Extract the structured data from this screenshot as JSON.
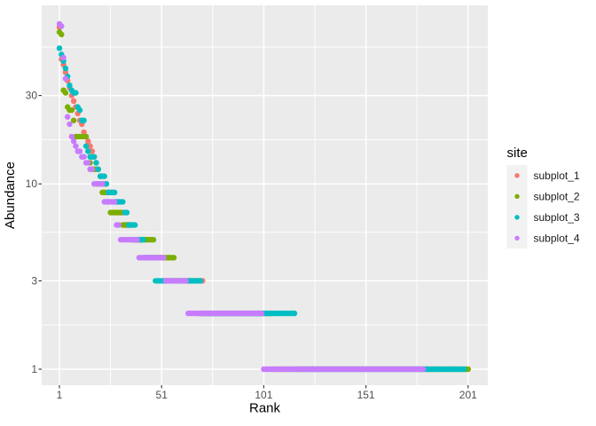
{
  "colors": {
    "figure_background": "#FFFFFF",
    "panel_background": "#EBEBEB",
    "grid": "#FFFFFF",
    "legend_key_background": "#F2F2F2",
    "axis_tick_text": "#4D4D4D",
    "axis_title_text": "#000000",
    "tick_marks": "#333333"
  },
  "chart_data": {
    "type": "scatter",
    "title": "",
    "xlabel": "Rank",
    "ylabel": "Abundance",
    "x_scale": "linear",
    "y_scale": "log10",
    "x_ticks": [
      1,
      51,
      101,
      151,
      201
    ],
    "x_minor_ticks": [
      26,
      76,
      126,
      176
    ],
    "y_ticks": [
      1,
      3,
      10,
      30
    ],
    "y_minor_ticks": [
      1.7321,
      5.4772,
      17.3205,
      54.7723
    ],
    "xlim": [
      -9,
      211
    ],
    "ylim": [
      0.81,
      92
    ],
    "grid": "on",
    "legend_title": "site",
    "legend_position": "right",
    "point_run_format": "[abundance, rank_from, rank_to]",
    "series": [
      {
        "name": "subplot_1",
        "color": "#F8766D",
        "runs": [
          [
            70,
            1,
            1
          ],
          [
            47,
            2,
            2
          ],
          [
            44,
            3,
            3
          ],
          [
            40,
            4,
            4
          ],
          [
            36,
            5,
            5
          ],
          [
            33,
            6,
            6
          ],
          [
            30,
            7,
            7
          ],
          [
            28,
            8,
            8
          ],
          [
            26,
            9,
            9
          ],
          [
            24,
            10,
            10
          ],
          [
            22,
            11,
            11
          ],
          [
            21,
            12,
            12
          ],
          [
            19,
            13,
            13
          ],
          [
            18,
            14,
            14
          ],
          [
            17,
            15,
            15
          ],
          [
            16,
            16,
            16
          ],
          [
            15,
            17,
            17
          ],
          [
            14,
            18,
            18
          ],
          [
            13,
            19,
            19
          ],
          [
            12,
            20,
            20
          ],
          [
            11,
            21,
            21
          ],
          [
            10,
            22,
            23
          ],
          [
            9,
            24,
            27
          ],
          [
            8,
            28,
            30
          ],
          [
            7,
            31,
            32
          ],
          [
            6,
            33,
            36
          ],
          [
            5,
            37,
            43
          ],
          [
            4,
            44,
            51
          ],
          [
            3,
            52,
            71
          ]
        ]
      },
      {
        "name": "subplot_2",
        "color": "#7CAE00",
        "runs": [
          [
            66,
            1,
            1
          ],
          [
            64,
            2,
            2
          ],
          [
            32,
            3,
            3
          ],
          [
            31,
            4,
            4
          ],
          [
            26,
            5,
            5
          ],
          [
            25,
            6,
            7
          ],
          [
            22,
            8,
            8
          ],
          [
            18,
            9,
            14
          ],
          [
            15,
            15,
            15
          ],
          [
            13,
            16,
            16
          ],
          [
            12,
            17,
            19
          ],
          [
            10,
            20,
            21
          ],
          [
            9,
            22,
            23
          ],
          [
            8,
            24,
            25
          ],
          [
            7,
            26,
            31
          ],
          [
            6,
            32,
            36
          ],
          [
            5,
            37,
            47
          ],
          [
            4,
            48,
            57
          ],
          [
            3,
            58,
            68
          ],
          [
            2,
            69,
            105
          ],
          [
            1,
            106,
            201
          ]
        ]
      },
      {
        "name": "subplot_3",
        "color": "#00BFC4",
        "runs": [
          [
            54,
            1,
            1
          ],
          [
            50,
            2,
            2
          ],
          [
            46,
            3,
            3
          ],
          [
            42,
            4,
            4
          ],
          [
            38,
            5,
            5
          ],
          [
            34,
            6,
            6
          ],
          [
            32,
            7,
            7
          ],
          [
            31,
            8,
            9
          ],
          [
            26,
            10,
            10
          ],
          [
            25,
            11,
            11
          ],
          [
            22,
            12,
            13
          ],
          [
            16,
            14,
            14
          ],
          [
            15,
            15,
            15
          ],
          [
            14,
            16,
            18
          ],
          [
            13,
            19,
            19
          ],
          [
            12,
            20,
            20
          ],
          [
            11,
            21,
            23
          ],
          [
            10,
            24,
            24
          ],
          [
            9,
            25,
            28
          ],
          [
            8,
            29,
            32
          ],
          [
            7,
            33,
            34
          ],
          [
            6,
            35,
            38
          ],
          [
            5,
            39,
            42
          ],
          [
            4,
            43,
            47
          ],
          [
            3,
            48,
            70
          ],
          [
            2,
            71,
            116
          ],
          [
            1,
            117,
            199
          ]
        ]
      },
      {
        "name": "subplot_4",
        "color": "#C77CFF",
        "runs": [
          [
            73,
            1,
            1
          ],
          [
            71,
            2,
            2
          ],
          [
            48,
            3,
            3
          ],
          [
            37,
            4,
            4
          ],
          [
            23,
            5,
            5
          ],
          [
            21,
            6,
            6
          ],
          [
            18,
            7,
            7
          ],
          [
            17,
            8,
            8
          ],
          [
            16,
            9,
            9
          ],
          [
            15,
            10,
            11
          ],
          [
            14,
            12,
            13
          ],
          [
            13,
            14,
            15
          ],
          [
            12,
            16,
            17
          ],
          [
            10,
            18,
            22
          ],
          [
            8,
            23,
            28
          ],
          [
            6,
            29,
            30
          ],
          [
            5,
            31,
            39
          ],
          [
            4,
            40,
            52
          ],
          [
            3,
            53,
            63
          ],
          [
            2,
            64,
            100
          ],
          [
            1,
            101,
            179
          ]
        ]
      }
    ]
  }
}
